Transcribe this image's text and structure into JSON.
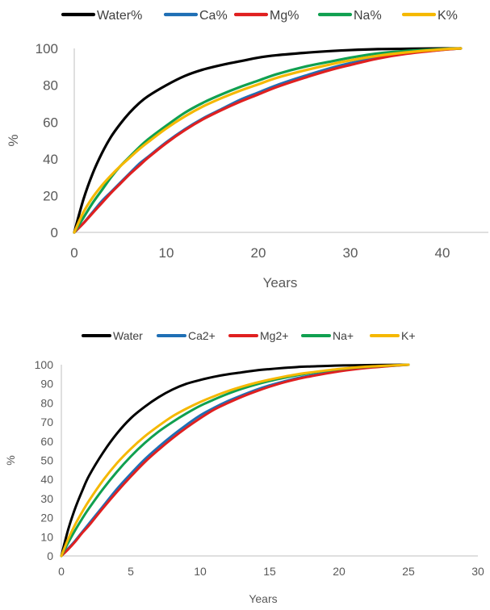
{
  "chart_data": [
    {
      "type": "line",
      "title": "",
      "xlabel": "Years",
      "ylabel": "%",
      "xlim": [
        0,
        45
      ],
      "ylim": [
        0,
        100
      ],
      "xticks": [
        0,
        10,
        20,
        30,
        40
      ],
      "yticks": [
        0,
        20,
        40,
        60,
        80,
        100
      ],
      "legend_position": "top",
      "grid": false,
      "x": [
        0,
        1,
        2,
        3,
        4,
        5,
        6,
        7,
        8,
        10,
        12,
        14,
        16,
        18,
        20,
        22,
        25,
        28,
        30,
        33,
        36,
        40,
        42
      ],
      "series": [
        {
          "name": "Water%",
          "color": "#000000",
          "values": [
            0,
            18,
            32,
            43,
            52,
            59,
            65,
            70,
            74,
            80,
            85,
            88.5,
            91,
            93,
            95,
            96.3,
            97.6,
            98.6,
            99.1,
            99.6,
            99.8,
            100,
            100
          ]
        },
        {
          "name": "Ca%",
          "color": "#1f6fb5",
          "values": [
            0,
            5,
            11,
            17,
            22,
            27,
            32,
            37,
            41,
            49,
            56,
            62,
            67,
            72,
            76,
            80,
            85,
            89.5,
            92,
            95,
            97.3,
            99.3,
            100
          ]
        },
        {
          "name": "Mg%",
          "color": "#e02020",
          "values": [
            0,
            5,
            10.5,
            16,
            21.5,
            26.5,
            31.5,
            36,
            40.5,
            48.5,
            55.5,
            61.5,
            66.5,
            71,
            75,
            79,
            84,
            88.5,
            91,
            94.5,
            97,
            99.2,
            100
          ]
        },
        {
          "name": "Na%",
          "color": "#10a050",
          "values": [
            0,
            8,
            16,
            23,
            30,
            36,
            41,
            46,
            50.5,
            58,
            65,
            70.5,
            75,
            79,
            82.5,
            86,
            90,
            93,
            95,
            97.3,
            98.6,
            99.7,
            100
          ]
        },
        {
          "name": "K%",
          "color": "#f5b800",
          "values": [
            0,
            11,
            19,
            25.5,
            31,
            36,
            40.5,
            45,
            49,
            56.5,
            63,
            68.5,
            73,
            77,
            80.5,
            84,
            88,
            91.5,
            93.5,
            96,
            97.8,
            99.5,
            100
          ]
        }
      ]
    },
    {
      "type": "line",
      "title": "",
      "xlabel": "Years",
      "ylabel": "%",
      "xlim": [
        0,
        30
      ],
      "ylim": [
        0,
        100
      ],
      "xticks": [
        0,
        5,
        10,
        15,
        20,
        25,
        30
      ],
      "yticks": [
        0,
        10,
        20,
        30,
        40,
        50,
        60,
        70,
        80,
        90,
        100
      ],
      "legend_position": "top",
      "grid": false,
      "x": [
        0,
        0.5,
        1,
        1.5,
        2,
        3,
        4,
        5,
        6,
        7,
        8,
        9,
        10,
        11,
        12,
        13,
        14,
        15,
        16,
        17,
        18,
        20,
        22,
        25
      ],
      "series": [
        {
          "name": "Water",
          "color": "#000000",
          "values": [
            0,
            14,
            25,
            34,
            42,
            54,
            64,
            72,
            78,
            83,
            87,
            90,
            92,
            93.7,
            95,
            96,
            97,
            97.7,
            98.3,
            98.8,
            99.1,
            99.6,
            99.8,
            100
          ]
        },
        {
          "name": "Ca2+",
          "color": "#1f6fb5",
          "values": [
            0,
            4,
            8,
            12.5,
            17,
            26,
            35,
            43,
            50.5,
            57,
            63,
            68.5,
            73.5,
            77.5,
            81,
            84,
            86.8,
            89.2,
            91.2,
            93,
            94.4,
            96.8,
            98.5,
            100
          ]
        },
        {
          "name": "Mg2+",
          "color": "#e02020",
          "values": [
            0,
            3.5,
            7.5,
            12,
            16,
            25,
            33.5,
            41.5,
            49,
            55.5,
            61.5,
            67,
            72,
            76.5,
            80,
            83.2,
            86,
            88.5,
            90.7,
            92.5,
            94,
            96.5,
            98.3,
            100
          ]
        },
        {
          "name": "Na+",
          "color": "#10a050",
          "values": [
            0,
            7,
            13.5,
            19.5,
            25,
            35,
            44,
            52,
            59,
            65,
            70,
            74.5,
            78.5,
            81.8,
            84.8,
            87.4,
            89.6,
            91.5,
            93.1,
            94.5,
            95.7,
            97.6,
            98.9,
            100
          ]
        },
        {
          "name": "K+",
          "color": "#f5b800",
          "values": [
            0,
            9,
            16.5,
            23,
            29,
            39.5,
            48.5,
            56,
            62.5,
            68,
            73,
            77,
            80.5,
            83.5,
            86.2,
            88.5,
            90.5,
            92.2,
            93.7,
            95,
            96,
            97.8,
            99,
            100
          ]
        }
      ]
    }
  ]
}
